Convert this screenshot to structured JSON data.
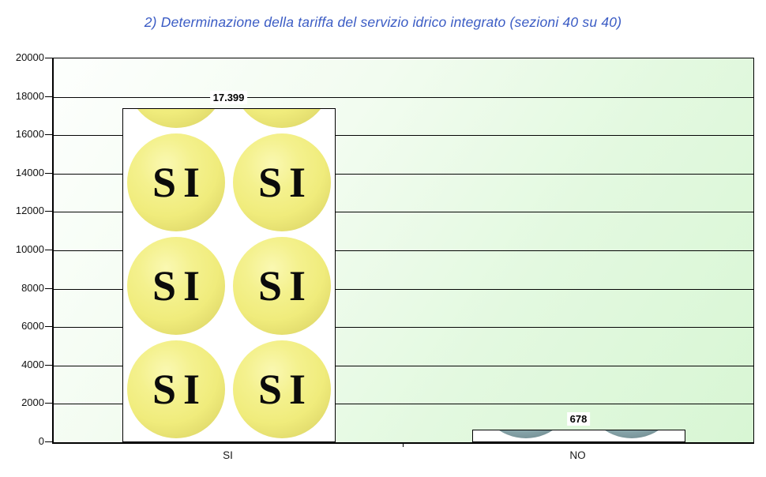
{
  "title": "2) Determinazione della tariffa del servizio idrico integrato (sezioni 40 su 40)",
  "chart_data": {
    "type": "bar",
    "categories": [
      "SI",
      "NO"
    ],
    "values": [
      17399,
      678
    ],
    "value_labels": [
      "17.399",
      "678"
    ],
    "ylim": [
      0,
      20000
    ],
    "ytick_step": 2000,
    "ytick_labels": [
      "0",
      "2000",
      "4000",
      "6000",
      "8000",
      "10000",
      "12000",
      "14000",
      "16000",
      "18000",
      "20000"
    ],
    "grid": true,
    "legend_position": "none",
    "bar_fill_style": "stacked-picture-buttons",
    "bar_icons": [
      {
        "category": "SI",
        "icon": "si-button-icon",
        "button_text": "SI"
      },
      {
        "category": "NO",
        "icon": "no-button-icon",
        "button_text": ""
      }
    ],
    "colors": {
      "title_text": "#3a5bc4",
      "plot_bg_light": "#fdfffd",
      "plot_bg_green": "#d8f6d4",
      "gridline": "#050505",
      "bar_background": "#ffffff",
      "bar_border": "#000000",
      "si_button_fill": "#f1ee7e",
      "no_button_fill": "#9cbabd",
      "axis_text": "#111111",
      "value_label_text": "#000000"
    }
  }
}
